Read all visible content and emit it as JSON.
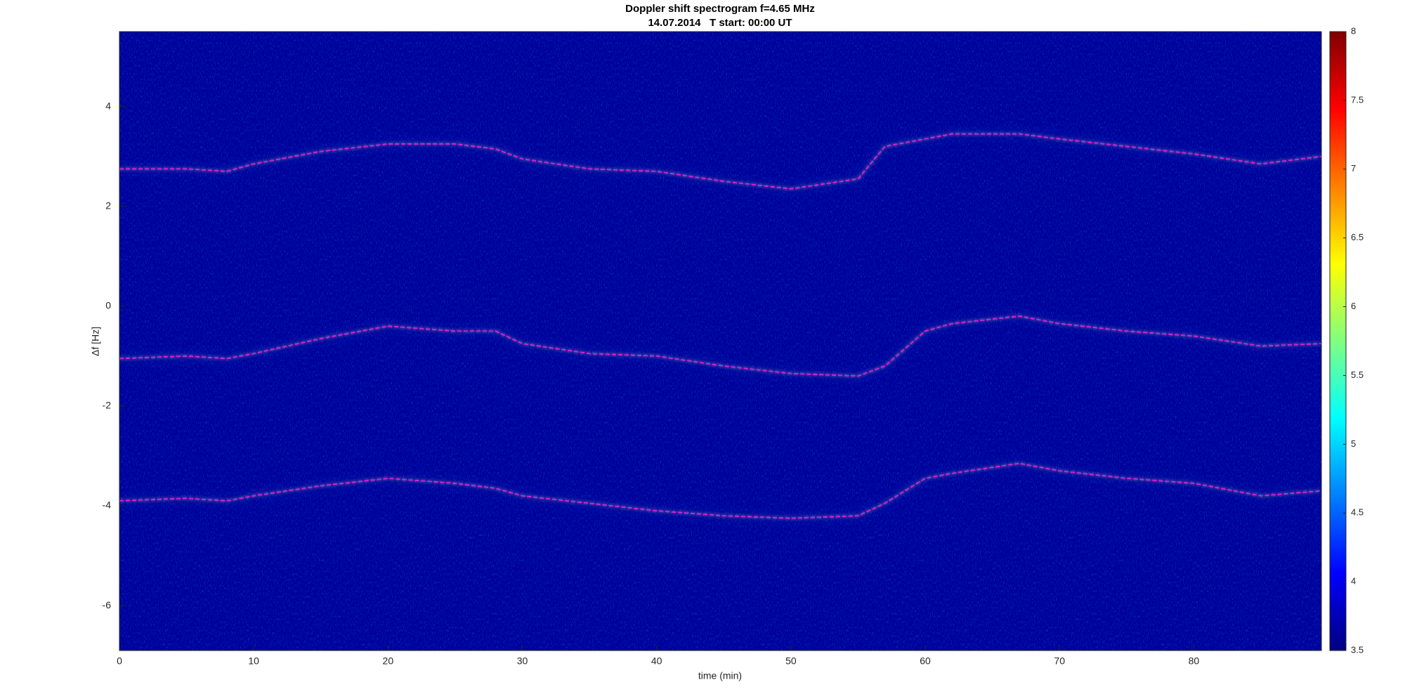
{
  "chart_data": {
    "type": "spectrogram",
    "title": [
      "Doppler shift spectrogram f=4.65 MHz",
      "14.07.2014   T start: 00:00 UT"
    ],
    "xlabel": "time (min)",
    "ylabel": "Δf [Hz]",
    "x": [
      0,
      5,
      8,
      10,
      15,
      20,
      25,
      28,
      30,
      35,
      40,
      45,
      50,
      55,
      57,
      60,
      62,
      67,
      70,
      75,
      80,
      85,
      89.5
    ],
    "series": [
      {
        "color": "#ff00ff",
        "values": [
          2.75,
          2.75,
          2.7,
          2.85,
          3.1,
          3.25,
          3.25,
          3.15,
          2.95,
          2.75,
          2.7,
          2.5,
          2.35,
          2.55,
          3.2,
          3.35,
          3.45,
          3.45,
          3.35,
          3.2,
          3.05,
          2.85,
          3.0
        ]
      },
      {
        "color": "#ff00ff",
        "values": [
          -1.05,
          -1.0,
          -1.05,
          -0.95,
          -0.65,
          -0.4,
          -0.5,
          -0.5,
          -0.75,
          -0.95,
          -1.0,
          -1.2,
          -1.35,
          -1.4,
          -1.2,
          -0.5,
          -0.35,
          -0.2,
          -0.35,
          -0.5,
          -0.6,
          -0.8,
          -0.75
        ]
      },
      {
        "color": "#ff00ff",
        "values": [
          -3.9,
          -3.85,
          -3.9,
          -3.8,
          -3.6,
          -3.45,
          -3.55,
          -3.65,
          -3.8,
          -3.95,
          -4.1,
          -4.2,
          -4.25,
          -4.2,
          -3.95,
          -3.45,
          -3.35,
          -3.15,
          -3.3,
          -3.45,
          -3.55,
          -3.8,
          -3.7
        ]
      }
    ],
    "xlim": [
      0,
      89.5
    ],
    "ylim": [
      -6.9,
      5.5
    ],
    "xticks": [
      0,
      10,
      20,
      30,
      40,
      50,
      60,
      70,
      80
    ],
    "yticks": [
      -6,
      -4,
      -2,
      0,
      2,
      4
    ],
    "colormap": "jet",
    "background_color": "#00009a",
    "clim": [
      3.5,
      8
    ],
    "cticks": [
      3.5,
      4,
      4.5,
      5,
      5.5,
      6,
      6.5,
      7,
      7.5,
      8
    ]
  }
}
